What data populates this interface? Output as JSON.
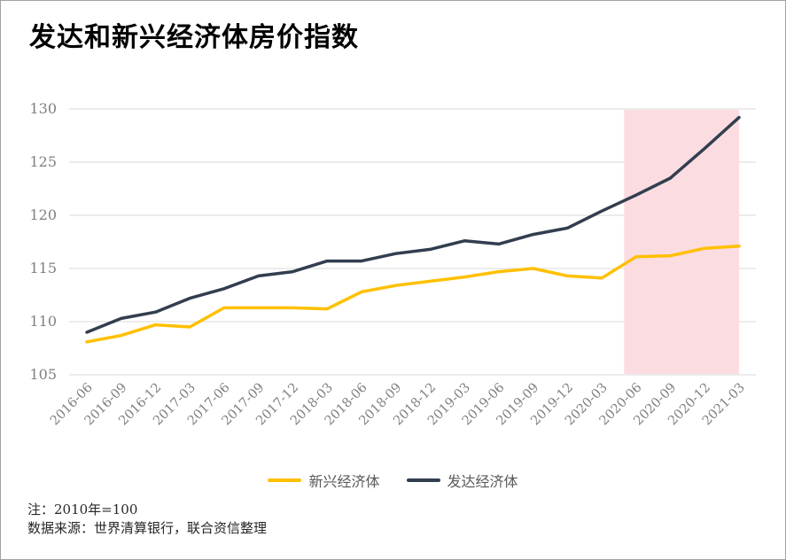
{
  "title": "发达和新兴经济体房价指数",
  "notes": {
    "line1": "注：2010年=100",
    "line2": "数据来源：世界清算银行，联合资信整理"
  },
  "colors": {
    "emerging_line": "#ffc000",
    "developed_line": "#323e4f",
    "highlight_band": "#fbdce1",
    "gridline": "#d9d9d9",
    "tick_label": "#808080",
    "legend_text": "#595959"
  },
  "chart_data": {
    "type": "line",
    "title": "发达和新兴经济体房价指数",
    "categories": [
      "2016-06",
      "2016-09",
      "2016-12",
      "2017-03",
      "2017-06",
      "2017-09",
      "2017-12",
      "2018-03",
      "2018-06",
      "2018-09",
      "2018-12",
      "2019-03",
      "2019-06",
      "2019-09",
      "2019-12",
      "2020-03",
      "2020-06",
      "2020-09",
      "2020-12",
      "2021-03"
    ],
    "series": [
      {
        "name": "新兴经济体",
        "color": "#ffc000",
        "values": [
          108.1,
          108.7,
          109.7,
          109.5,
          111.3,
          111.3,
          111.3,
          111.2,
          112.8,
          113.4,
          113.8,
          114.2,
          114.7,
          115.0,
          114.3,
          114.1,
          116.1,
          116.2,
          116.9,
          117.1
        ]
      },
      {
        "name": "发达经济体",
        "color": "#323e4f",
        "values": [
          109.0,
          110.3,
          110.9,
          112.2,
          113.1,
          114.3,
          114.7,
          115.7,
          115.7,
          116.4,
          116.8,
          117.6,
          117.3,
          118.2,
          118.8,
          120.4,
          121.9,
          123.5,
          126.3,
          129.2
        ]
      }
    ],
    "ylim": [
      105,
      130
    ],
    "yticks": [
      105,
      110,
      115,
      120,
      125,
      130
    ],
    "grid": "horizontal",
    "legend_position": "bottom",
    "highlight_region": {
      "from": "2020-06",
      "to": "2021-03",
      "color": "#fbdce1"
    }
  }
}
